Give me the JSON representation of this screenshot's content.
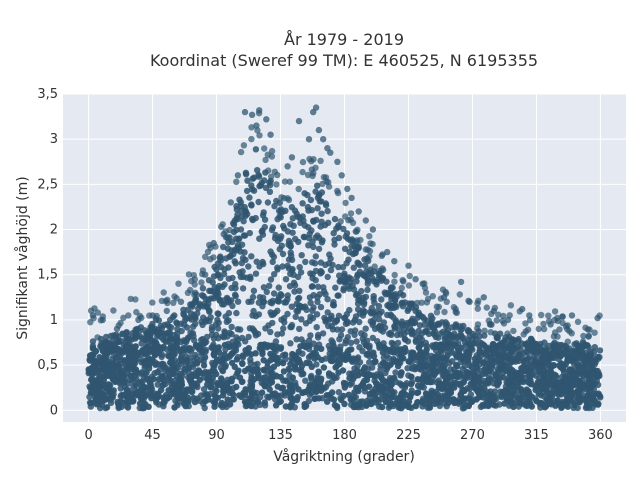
{
  "chart_data": {
    "type": "scatter",
    "title_line1": "År 1979 - 2019",
    "title_line2": "Koordinat (Sweref 99 TM): E 460525, N 6195355",
    "xlabel": "Vågriktning (grader)",
    "ylabel": "Signifikant våghöjd (m)",
    "xlim": [
      -18,
      378
    ],
    "ylim": [
      -0.13,
      3.5
    ],
    "x_ticks": [
      0,
      45,
      90,
      135,
      180,
      225,
      270,
      315,
      360
    ],
    "x_tick_labels": [
      "0",
      "45",
      "90",
      "135",
      "180",
      "225",
      "270",
      "315",
      "360"
    ],
    "y_ticks": [
      0,
      0.5,
      1,
      1.5,
      2,
      2.5,
      3,
      3.5
    ],
    "y_tick_labels": [
      "0",
      "0,5",
      "1",
      "1,5",
      "2",
      "2,5",
      "3",
      "3,5"
    ],
    "grid": true,
    "marker_color": "#2f5570",
    "plot_background": "#e5e9f2",
    "envelope": {
      "direction": [
        0,
        10,
        20,
        30,
        40,
        50,
        60,
        70,
        80,
        90,
        100,
        105,
        110,
        115,
        120,
        125,
        130,
        135,
        140,
        145,
        150,
        155,
        160,
        165,
        170,
        175,
        180,
        190,
        200,
        210,
        220,
        230,
        240,
        250,
        260,
        270,
        280,
        290,
        300,
        310,
        320,
        330,
        340,
        350,
        360
      ],
      "upper_height": [
        0.8,
        0.8,
        0.85,
        0.9,
        0.95,
        1.0,
        1.05,
        1.15,
        1.35,
        1.65,
        2.0,
        2.35,
        2.7,
        2.95,
        2.95,
        2.7,
        2.5,
        2.35,
        2.25,
        2.25,
        2.4,
        2.5,
        2.5,
        2.45,
        2.3,
        2.15,
        2.0,
        1.8,
        1.6,
        1.45,
        1.3,
        1.15,
        1.05,
        1.0,
        0.95,
        0.9,
        0.85,
        0.85,
        0.8,
        0.8,
        0.75,
        0.75,
        0.75,
        0.75,
        0.7
      ]
    },
    "notable_points": [
      {
        "x": 110,
        "y": 3.3
      },
      {
        "x": 115,
        "y": 3.27
      },
      {
        "x": 120,
        "y": 3.32
      },
      {
        "x": 125,
        "y": 3.22
      },
      {
        "x": 118,
        "y": 3.15
      },
      {
        "x": 128,
        "y": 3.05
      },
      {
        "x": 160,
        "y": 3.35
      },
      {
        "x": 158,
        "y": 3.3
      },
      {
        "x": 148,
        "y": 3.2
      },
      {
        "x": 162,
        "y": 3.1
      },
      {
        "x": 165,
        "y": 3.0
      },
      {
        "x": 155,
        "y": 3.0
      },
      {
        "x": 168,
        "y": 2.9
      },
      {
        "x": 175,
        "y": 2.75
      },
      {
        "x": 178,
        "y": 2.6
      },
      {
        "x": 182,
        "y": 2.45
      },
      {
        "x": 185,
        "y": 2.35
      },
      {
        "x": 190,
        "y": 2.2
      },
      {
        "x": 195,
        "y": 2.1
      },
      {
        "x": 200,
        "y": 2.0
      },
      {
        "x": 210,
        "y": 1.75
      },
      {
        "x": 215,
        "y": 1.65
      },
      {
        "x": 225,
        "y": 1.6
      },
      {
        "x": 230,
        "y": 1.45
      },
      {
        "x": 235,
        "y": 1.4
      },
      {
        "x": 250,
        "y": 1.25
      },
      {
        "x": 262,
        "y": 1.42
      },
      {
        "x": 268,
        "y": 1.2
      },
      {
        "x": 278,
        "y": 1.25
      },
      {
        "x": 285,
        "y": 1.1
      },
      {
        "x": 295,
        "y": 1.0
      },
      {
        "x": 305,
        "y": 1.12
      },
      {
        "x": 310,
        "y": 1.05
      },
      {
        "x": 325,
        "y": 0.95
      },
      {
        "x": 340,
        "y": 1.05
      },
      {
        "x": 358,
        "y": 1.02
      },
      {
        "x": 3,
        "y": 1.05
      },
      {
        "x": 10,
        "y": 1.0
      },
      {
        "x": 20,
        "y": 0.9
      },
      {
        "x": 35,
        "y": 1.0
      },
      {
        "x": 45,
        "y": 1.05
      },
      {
        "x": 55,
        "y": 1.1
      },
      {
        "x": 65,
        "y": 1.2
      },
      {
        "x": 75,
        "y": 1.3
      },
      {
        "x": 82,
        "y": 1.5
      },
      {
        "x": 88,
        "y": 1.85
      },
      {
        "x": 95,
        "y": 1.95
      },
      {
        "x": 100,
        "y": 2.3
      },
      {
        "x": 105,
        "y": 2.6
      },
      {
        "x": 140,
        "y": 2.7
      },
      {
        "x": 143,
        "y": 2.8
      },
      {
        "x": 170,
        "y": 2.85
      }
    ]
  }
}
